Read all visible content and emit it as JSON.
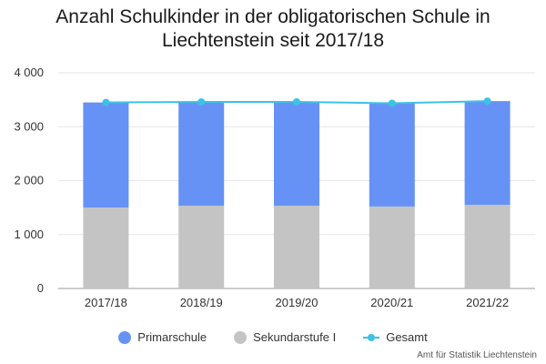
{
  "title_line1": "Anzahl Schulkinder in der obligatorischen Schule in",
  "title_line2": "Liechtenstein seit 2017/18",
  "source": "Amt für Statistik Liechtenstein",
  "chart_data": {
    "type": "bar",
    "stacked": true,
    "categories": [
      "2017/18",
      "2018/19",
      "2019/20",
      "2020/21",
      "2021/22"
    ],
    "series": [
      {
        "name": "Sekundarstufe I",
        "color": "#c4c4c4",
        "values": [
          1500,
          1535,
          1535,
          1520,
          1550
        ]
      },
      {
        "name": "Primarschule",
        "color": "#6692f5",
        "values": [
          1950,
          1925,
          1925,
          1915,
          1925
        ]
      },
      {
        "name": "Gesamt",
        "type": "line",
        "color": "#3cc2e6",
        "values": [
          3450,
          3460,
          3460,
          3435,
          3475
        ]
      }
    ],
    "yticks": [
      "0",
      "1 000",
      "2 000",
      "3 000",
      "4 000"
    ],
    "ylim": [
      0,
      4000
    ],
    "grid": true,
    "legend": "bottom",
    "legend_order": [
      "Primarschule",
      "Sekundarstufe I",
      "Gesamt"
    ]
  }
}
